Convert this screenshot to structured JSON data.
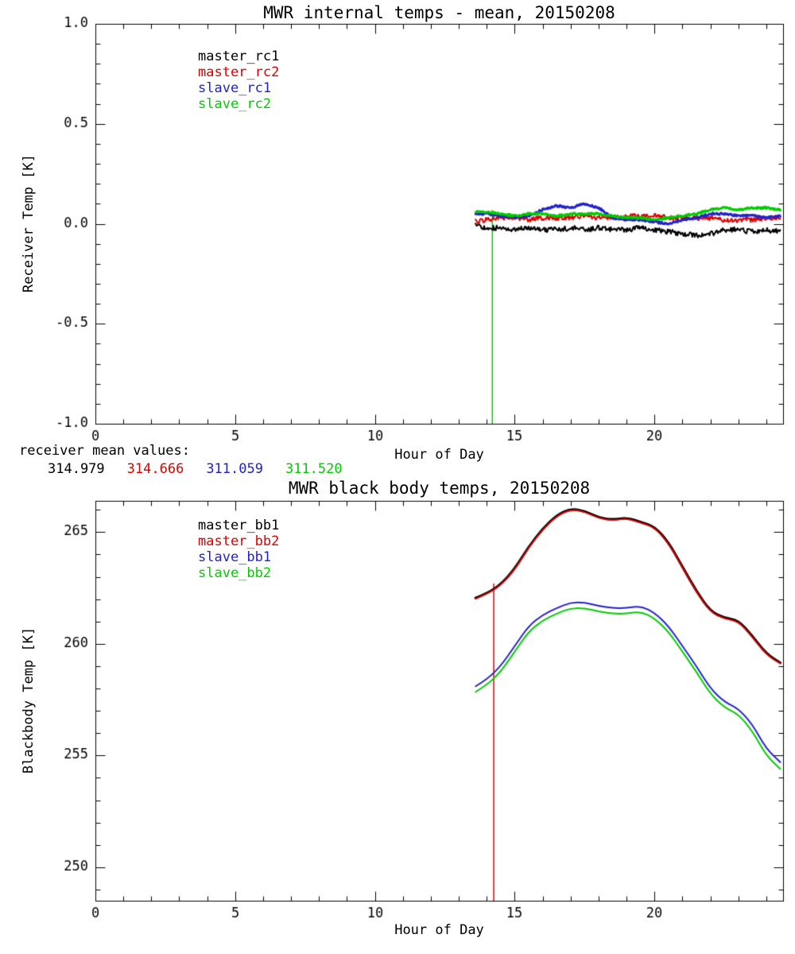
{
  "figure": {
    "background": "#ffffff",
    "axis_color": "#000000"
  },
  "means": {
    "label": "receiver mean values:",
    "values": [
      {
        "text": "314.979",
        "color": "#000000"
      },
      {
        "text": "314.666",
        "color": "#dd0000"
      },
      {
        "text": "311.059",
        "color": "#2222cc"
      },
      {
        "text": "311.520",
        "color": "#00cc00"
      }
    ]
  },
  "chart_data": [
    {
      "type": "line",
      "title": "MWR internal temps - mean, 20150208",
      "xlabel": "Hour of Day",
      "ylabel": "Receiver Temp [K]",
      "xlim": [
        0,
        24.6
      ],
      "ylim": [
        -1.0,
        1.0
      ],
      "xticks": [
        0,
        5,
        10,
        15,
        20
      ],
      "xtick_labels": [
        "0",
        "5",
        "10",
        "15",
        "20"
      ],
      "yticks": [
        -1.0,
        -0.5,
        0.0,
        0.5,
        1.0
      ],
      "ytick_labels": [
        "-1.0",
        "-0.5",
        "0.0",
        "0.5",
        "1.0"
      ],
      "x_minor": 1,
      "y_minor": 0.1,
      "grid": false,
      "legend_position": "upper-left-inside",
      "legend": [
        {
          "label": "master_rc1",
          "color": "#000000"
        },
        {
          "label": "master_rc2",
          "color": "#dd0000"
        },
        {
          "label": "slave_rc1",
          "color": "#2222cc"
        },
        {
          "label": "slave_rc2",
          "color": "#00cc00"
        }
      ],
      "vline": {
        "x": 14.2,
        "y_from": -1.0,
        "y_to": 0.07,
        "color": "#00cc00",
        "linewidth": 1.5
      },
      "x": [
        13.6,
        14.0,
        14.5,
        15.0,
        15.5,
        16.0,
        16.5,
        17.0,
        17.5,
        18.0,
        18.5,
        19.0,
        19.5,
        20.0,
        20.5,
        21.0,
        21.5,
        22.0,
        22.5,
        23.0,
        23.5,
        24.0,
        24.5
      ],
      "series": [
        {
          "name": "master_rc1",
          "color": "#000000",
          "linewidth": 2,
          "noise": 0.013,
          "y": [
            -0.01,
            -0.02,
            -0.02,
            -0.03,
            -0.02,
            -0.03,
            -0.03,
            -0.02,
            -0.03,
            -0.02,
            -0.03,
            -0.03,
            -0.02,
            -0.03,
            -0.04,
            -0.05,
            -0.06,
            -0.05,
            -0.03,
            -0.03,
            -0.04,
            -0.03,
            -0.04
          ]
        },
        {
          "name": "master_rc2",
          "color": "#dd0000",
          "linewidth": 2,
          "noise": 0.012,
          "y": [
            0.01,
            0.02,
            0.03,
            0.03,
            0.02,
            0.03,
            0.03,
            0.03,
            0.04,
            0.03,
            0.03,
            0.04,
            0.04,
            0.04,
            0.03,
            0.03,
            0.03,
            0.03,
            0.02,
            0.02,
            0.02,
            0.03,
            0.03
          ]
        },
        {
          "name": "slave_rc1",
          "color": "#2222cc",
          "linewidth": 3,
          "noise": 0.005,
          "y": [
            0.05,
            0.05,
            0.04,
            0.03,
            0.04,
            0.07,
            0.09,
            0.08,
            0.1,
            0.08,
            0.03,
            0.02,
            0.02,
            0.01,
            0.0,
            0.02,
            0.03,
            0.05,
            0.05,
            0.04,
            0.04,
            0.03,
            0.04
          ]
        },
        {
          "name": "slave_rc2",
          "color": "#00cc00",
          "linewidth": 3,
          "noise": 0.005,
          "y": [
            0.06,
            0.06,
            0.05,
            0.04,
            0.05,
            0.05,
            0.04,
            0.05,
            0.05,
            0.05,
            0.04,
            0.03,
            0.03,
            0.02,
            0.03,
            0.04,
            0.05,
            0.07,
            0.08,
            0.07,
            0.08,
            0.08,
            0.07
          ]
        }
      ]
    },
    {
      "type": "line",
      "title": "MWR black body temps, 20150208",
      "xlabel": "Hour of Day",
      "ylabel": "Blackbody Temp [K]",
      "xlim": [
        0,
        24.6
      ],
      "ylim": [
        248.5,
        266.4
      ],
      "xticks": [
        0,
        5,
        10,
        15,
        20
      ],
      "xtick_labels": [
        "0",
        "5",
        "10",
        "15",
        "20"
      ],
      "yticks": [
        250,
        255,
        260,
        265
      ],
      "ytick_labels": [
        "250",
        "255",
        "260",
        "265"
      ],
      "x_minor": 1,
      "y_minor": 1,
      "grid": false,
      "legend_position": "upper-left-inside",
      "legend": [
        {
          "label": "master_bb1",
          "color": "#000000"
        },
        {
          "label": "master_bb2",
          "color": "#dd0000"
        },
        {
          "label": "slave_bb1",
          "color": "#2222cc"
        },
        {
          "label": "slave_bb2",
          "color": "#00cc00"
        }
      ],
      "vline": {
        "x": 14.25,
        "y_from": 248.5,
        "y_to": 262.7,
        "color": "#dd0000",
        "linewidth": 1.5
      },
      "x": [
        13.6,
        14.0,
        14.5,
        15.0,
        15.5,
        16.0,
        16.5,
        17.0,
        17.5,
        18.0,
        18.5,
        19.0,
        19.5,
        20.0,
        20.5,
        21.0,
        21.5,
        22.0,
        22.5,
        23.0,
        23.5,
        24.0,
        24.5
      ],
      "series": [
        {
          "name": "master_bb1",
          "color": "#000000",
          "linewidth": 3.2,
          "noise": 0,
          "y": [
            262.05,
            262.25,
            262.65,
            263.35,
            264.35,
            265.15,
            265.75,
            266.05,
            265.95,
            265.65,
            265.55,
            265.65,
            265.45,
            265.25,
            264.55,
            263.45,
            262.35,
            261.45,
            261.15,
            261.05,
            260.35,
            259.55,
            259.15
          ]
        },
        {
          "name": "master_bb2",
          "color": "#dd0000",
          "linewidth": 1.8,
          "noise": 0,
          "y": [
            262.02,
            262.22,
            262.62,
            263.32,
            264.32,
            265.12,
            265.72,
            266.02,
            265.92,
            265.62,
            265.52,
            265.62,
            265.42,
            265.22,
            264.52,
            263.42,
            262.32,
            261.42,
            261.12,
            261.02,
            260.32,
            259.52,
            259.12
          ]
        },
        {
          "name": "slave_bb1",
          "color": "#2222cc",
          "linewidth": 2,
          "noise": 0,
          "y": [
            258.1,
            258.4,
            259.0,
            259.9,
            260.8,
            261.3,
            261.6,
            261.85,
            261.85,
            261.7,
            261.6,
            261.6,
            261.7,
            261.4,
            260.8,
            259.9,
            259.0,
            258.0,
            257.4,
            257.1,
            256.4,
            255.3,
            254.7
          ]
        },
        {
          "name": "slave_bb2",
          "color": "#00cc00",
          "linewidth": 2,
          "noise": 0,
          "y": [
            257.85,
            258.15,
            258.75,
            259.65,
            260.55,
            261.05,
            261.35,
            261.6,
            261.6,
            261.45,
            261.35,
            261.35,
            261.45,
            261.15,
            260.55,
            259.65,
            258.75,
            257.75,
            257.15,
            256.85,
            256.1,
            255.0,
            254.4
          ]
        }
      ]
    }
  ]
}
